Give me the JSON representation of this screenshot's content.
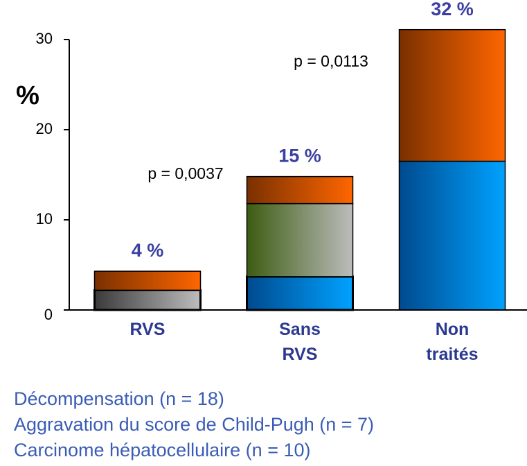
{
  "chart_data": {
    "type": "stacked_bar",
    "y_label": "%",
    "categories": [
      "RVS",
      "Sans RVS",
      "Non traités"
    ],
    "series": [
      {
        "colors": [
          [
            "#3a3a3a",
            "#bdbdbd"
          ],
          [
            "#004a8f",
            "#00a2ff"
          ],
          [
            "#004a8f",
            "#00a2ff"
          ]
        ],
        "values": [
          2.2,
          3.7,
          16.5
        ]
      },
      {
        "colors": [
          null,
          [
            "#3d5c12",
            "#bcbcbc"
          ],
          null
        ],
        "values": [
          null,
          8.1,
          null
        ]
      },
      {
        "colors": [
          [
            "#7a3000",
            "#ff6600"
          ],
          [
            "#7a3000",
            "#ff6600"
          ],
          [
            "#7a3000",
            "#ff6600"
          ]
        ],
        "values": [
          2.1,
          3.0,
          14.6
        ]
      }
    ],
    "total_labels": [
      "4 %",
      "15 %",
      "32 %"
    ],
    "annotations": [
      "p = 0,0037",
      "p = 0,0113"
    ],
    "ylim": [
      0,
      30
    ],
    "yticks": [
      0,
      10,
      20,
      30
    ],
    "notes": [
      "Décompensation (n = 18)",
      "Aggravation du score de Child-Pugh (n = 7)",
      "Carcinome hépatocellulaire (n = 10)"
    ]
  }
}
